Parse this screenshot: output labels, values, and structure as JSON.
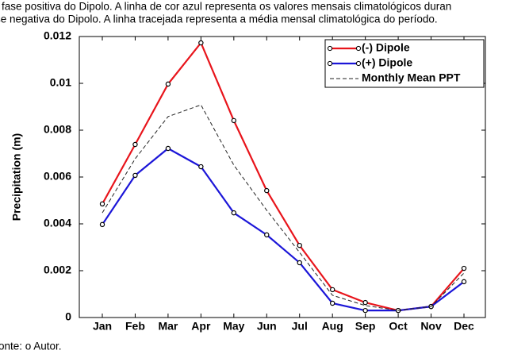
{
  "caption_lines": [
    "fase positiva do Dipolo. A linha de cor azul representa os valores mensais climatológicos duran",
    "se negativa do Dipolo. A linha tracejada representa a média mensal climatológica do período."
  ],
  "source": "onte: o Autor.",
  "chart_data": {
    "type": "line",
    "y_label": "Precipitation (m)",
    "categories": [
      "Jan",
      "Feb",
      "Mar",
      "Apr",
      "May",
      "Jun",
      "Jul",
      "Aug",
      "Sep",
      "Oct",
      "Nov",
      "Dec"
    ],
    "series": [
      {
        "name": "(-) Dipole",
        "color": "#e8141b",
        "markers": true,
        "dashed": false,
        "values": [
          0.00485,
          0.00739,
          0.00997,
          0.01173,
          0.00841,
          0.00542,
          0.00308,
          0.00119,
          0.00064,
          0.0003,
          0.00047,
          0.0021
        ]
      },
      {
        "name": "(+) Dipole",
        "color": "#1c16d8",
        "markers": true,
        "dashed": false,
        "values": [
          0.00397,
          0.00607,
          0.00722,
          0.00644,
          0.00447,
          0.00353,
          0.00234,
          0.00061,
          0.0003,
          0.0003,
          0.00047,
          0.00153
        ]
      },
      {
        "name": "Monthly Mean PPT",
        "color": "#222222",
        "markers": false,
        "dashed": true,
        "values": [
          0.00447,
          0.00678,
          0.00858,
          0.00908,
          0.00651,
          0.00458,
          0.00278,
          0.00095,
          0.00051,
          0.0003,
          0.00047,
          0.0019
        ]
      }
    ],
    "ylim": [
      0,
      0.012
    ],
    "yticks": [
      0,
      0.002,
      0.004,
      0.006,
      0.008,
      0.01,
      0.012
    ],
    "legend": "upper right"
  }
}
